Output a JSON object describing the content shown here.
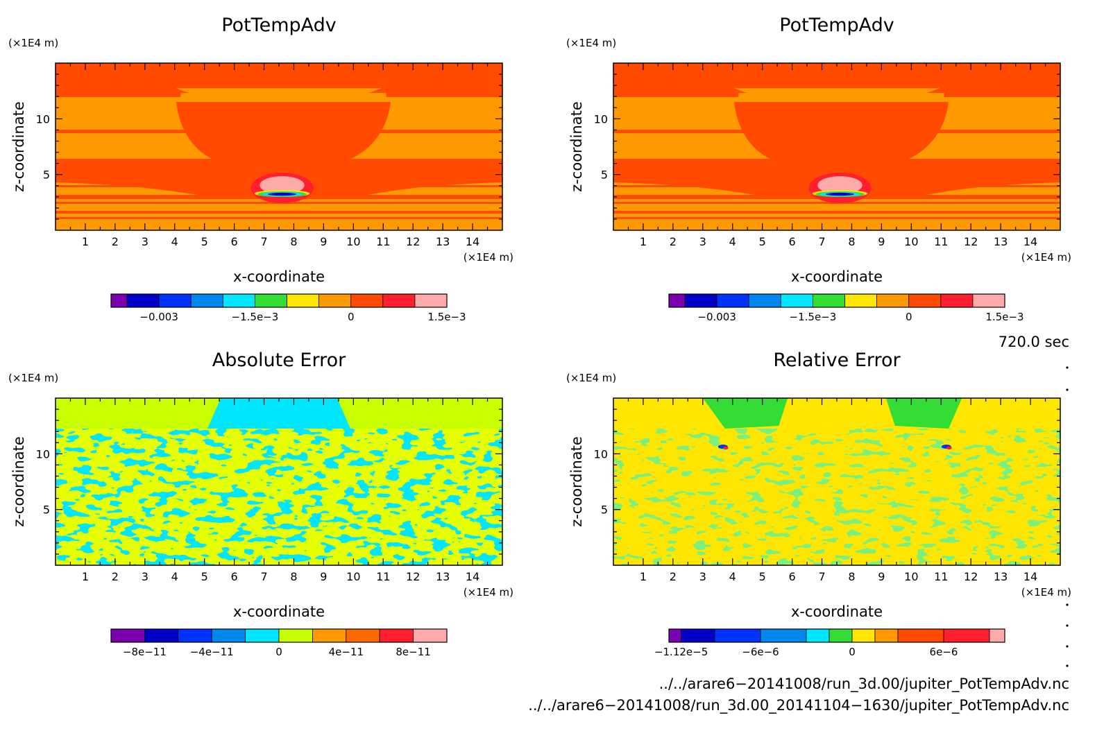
{
  "chart_data": [
    {
      "type": "heatmap",
      "title": "PotTempAdv",
      "xlabel": "x-coordinate",
      "ylabel": "z-coordinate",
      "x_unit": "(×1E4 m)",
      "y_unit": "(×1E4 m)",
      "xlim": [
        0,
        15
      ],
      "ylim": [
        0,
        15
      ],
      "x_ticks": [
        1,
        2,
        3,
        4,
        5,
        6,
        7,
        8,
        9,
        10,
        11,
        12,
        13,
        14
      ],
      "y_ticks": [
        5,
        10
      ],
      "colorbar": {
        "colors": [
          "#7a00b0",
          "#0000c8",
          "#0033ff",
          "#0088ee",
          "#00e6ff",
          "#33dd33",
          "#ffe600",
          "#ff9900",
          "#ff4a00",
          "#ff1f2e",
          "#ffaaaa"
        ],
        "boundaries": [
          -0.00375,
          -0.0035,
          -0.003,
          -0.0025,
          -0.002,
          -0.0015,
          -0.001,
          -0.0005,
          0,
          0.0005,
          0.001,
          0.0015
        ],
        "tick_values": [
          -0.003,
          -0.0015,
          0,
          0.0015
        ],
        "tick_labels": [
          "−0.003",
          "−1.5e−3",
          "0",
          "1.5e−3"
        ]
      }
    },
    {
      "type": "heatmap",
      "title": "PotTempAdv",
      "xlabel": "x-coordinate",
      "ylabel": "z-coordinate",
      "x_unit": "(×1E4 m)",
      "y_unit": "(×1E4 m)",
      "xlim": [
        0,
        15
      ],
      "ylim": [
        0,
        15
      ],
      "x_ticks": [
        1,
        2,
        3,
        4,
        5,
        6,
        7,
        8,
        9,
        10,
        11,
        12,
        13,
        14
      ],
      "y_ticks": [
        5,
        10
      ],
      "colorbar": {
        "colors": [
          "#7a00b0",
          "#0000c8",
          "#0033ff",
          "#0088ee",
          "#00e6ff",
          "#33dd33",
          "#ffe600",
          "#ff9900",
          "#ff4a00",
          "#ff1f2e",
          "#ffaaaa"
        ],
        "boundaries": [
          -0.00375,
          -0.0035,
          -0.003,
          -0.0025,
          -0.002,
          -0.0015,
          -0.001,
          -0.0005,
          0,
          0.0005,
          0.001,
          0.0015
        ],
        "tick_values": [
          -0.003,
          -0.0015,
          0,
          0.0015
        ],
        "tick_labels": [
          "−0.003",
          "−1.5e−3",
          "0",
          "1.5e−3"
        ]
      }
    },
    {
      "type": "heatmap",
      "title": "Absolute Error",
      "xlabel": "x-coordinate",
      "ylabel": "z-coordinate",
      "x_unit": "(×1E4 m)",
      "y_unit": "(×1E4 m)",
      "xlim": [
        0,
        15
      ],
      "ylim": [
        0,
        15
      ],
      "x_ticks": [
        1,
        2,
        3,
        4,
        5,
        6,
        7,
        8,
        9,
        10,
        11,
        12,
        13,
        14
      ],
      "y_ticks": [
        5,
        10
      ],
      "colorbar": {
        "colors": [
          "#7a00b0",
          "#0000c8",
          "#0033ff",
          "#0088ee",
          "#00e6ff",
          "#c8ff00",
          "#ff9900",
          "#ff6a00",
          "#ff1f2e",
          "#ffaaaa"
        ],
        "boundaries": [
          -1e-10,
          -8e-11,
          -6e-11,
          -4e-11,
          -2e-11,
          0,
          2e-11,
          4e-11,
          6e-11,
          8e-11,
          1e-10
        ],
        "tick_values": [
          -8e-11,
          -4e-11,
          0,
          4e-11,
          8e-11
        ],
        "tick_labels": [
          "−8e−11",
          "−4e−11",
          "0",
          "4e−11",
          "8e−11"
        ]
      }
    },
    {
      "type": "heatmap",
      "title": "Relative Error",
      "xlabel": "x-coordinate",
      "ylabel": "z-coordinate",
      "x_unit": "(×1E4 m)",
      "y_unit": "(×1E4 m)",
      "xlim": [
        0,
        15
      ],
      "ylim": [
        0,
        15
      ],
      "x_ticks": [
        1,
        2,
        3,
        4,
        5,
        6,
        7,
        8,
        9,
        10,
        11,
        12,
        13,
        14
      ],
      "y_ticks": [
        5,
        10
      ],
      "colorbar": {
        "colors": [
          "#7a00b0",
          "#0000c8",
          "#0033ff",
          "#0088ee",
          "#00e6ff",
          "#33dd33",
          "#ffe600",
          "#ff9900",
          "#ff4a00",
          "#ff1f2e",
          "#ffaaaa"
        ],
        "boundaries": [
          -1.2e-05,
          -1.12e-05,
          -9e-06,
          -6e-06,
          -3e-06,
          -1.5e-06,
          0,
          1.5e-06,
          3e-06,
          6e-06,
          9e-06,
          1e-05
        ],
        "tick_values": [
          -1.12e-05,
          -6e-06,
          0,
          6e-06
        ],
        "tick_labels": [
          "−1.12e−5",
          "−6e−6",
          "0",
          "6e−6"
        ]
      }
    }
  ],
  "annotations": {
    "time": "720.0 sec",
    "file1": "../../arare6−20141008/run_3d.00/jupiter_PotTempAdv.nc",
    "file2": "../../arare6−20141008/run_3d.00_20141104−1630/jupiter_PotTempAdv.nc"
  }
}
